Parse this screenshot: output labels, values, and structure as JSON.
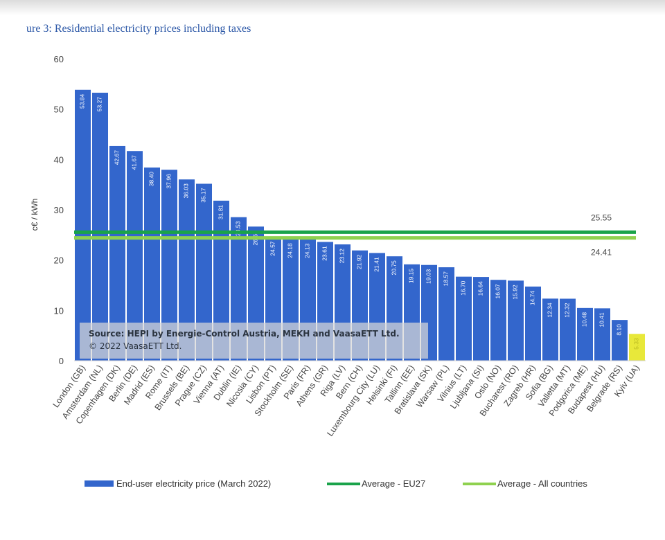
{
  "figure": {
    "title": "ure 3: Residential electricity prices including taxes",
    "source_line1": "Source: HEPI by Energie-Control Austria, MEKH and VaasaETT Ltd.",
    "source_line2": "© 2022 VaasaETT Ltd."
  },
  "colors": {
    "bar": "#3366cc",
    "highlight_bar": "#e8e83a",
    "eu27": "#1aa34a",
    "all_countries": "#8fd14f"
  },
  "chart_data": {
    "type": "bar",
    "ylabel": "c€ / kWh",
    "ylim": [
      0,
      60
    ],
    "yticks": [
      0,
      10,
      20,
      30,
      40,
      50,
      60
    ],
    "categories": [
      "London (GB)",
      "Amsterdam (NL)",
      "Copenhagen (DK)",
      "Berlin (DE)",
      "Madrid (ES)",
      "Rome (IT)",
      "Brussels (BE)",
      "Prague (CZ)",
      "Vienna (AT)",
      "Dublin (IE)",
      "Nicosia (CY)",
      "Lisbon (PT)",
      "Stockholm (SE)",
      "Paris (FR)",
      "Athens (GR)",
      "Riga (LV)",
      "Bern (CH)",
      "Luxembourg City (LU)",
      "Helsinki (FI)",
      "Tallinn (EE)",
      "Bratislava (SK)",
      "Warsaw (PL)",
      "Vilnius (LT)",
      "Ljubljana (SI)",
      "Oslo (NO)",
      "Bucharest (RO)",
      "Zagreb (HR)",
      "Sofia (BG)",
      "Valletta (MT)",
      "Podgorica (ME)",
      "Budapest (HU)",
      "Belgrade (RS)",
      "Kyiv (UA)"
    ],
    "series": [
      {
        "name": "End-user electricity price (March 2022)",
        "values": [
          53.84,
          53.27,
          42.67,
          41.67,
          38.4,
          37.96,
          36.03,
          35.17,
          31.81,
          28.53,
          26.66,
          24.57,
          24.18,
          24.13,
          23.61,
          23.12,
          21.92,
          21.41,
          20.75,
          19.15,
          19.03,
          18.57,
          16.7,
          16.64,
          16.07,
          15.92,
          14.74,
          12.34,
          12.32,
          10.48,
          10.41,
          8.1,
          5.33
        ],
        "labels": [
          "53.84",
          "53.27",
          "42.67",
          "41.67",
          "38.40",
          "37.96",
          "36.03",
          "35.17",
          "31.81",
          "28.53",
          "26.66",
          "24.57",
          "24.18",
          "24.13",
          "23.61",
          "23.12",
          "21.92",
          "21.41",
          "20.75",
          "19.15",
          "19.03",
          "18.57",
          "16.70",
          "16.64",
          "16.07",
          "15.92",
          "14.74",
          "12.34",
          "12.32",
          "10.48",
          "10.41",
          "8.10",
          "5.33"
        ]
      }
    ],
    "highlight_category": "Kyiv (UA)",
    "reference_lines": [
      {
        "name": "Average - EU27",
        "value": 25.55,
        "label": "25.55"
      },
      {
        "name": "Average - All countries",
        "value": 24.41,
        "label": "24.41"
      }
    ],
    "legend_position": "bottom",
    "grid": false
  }
}
